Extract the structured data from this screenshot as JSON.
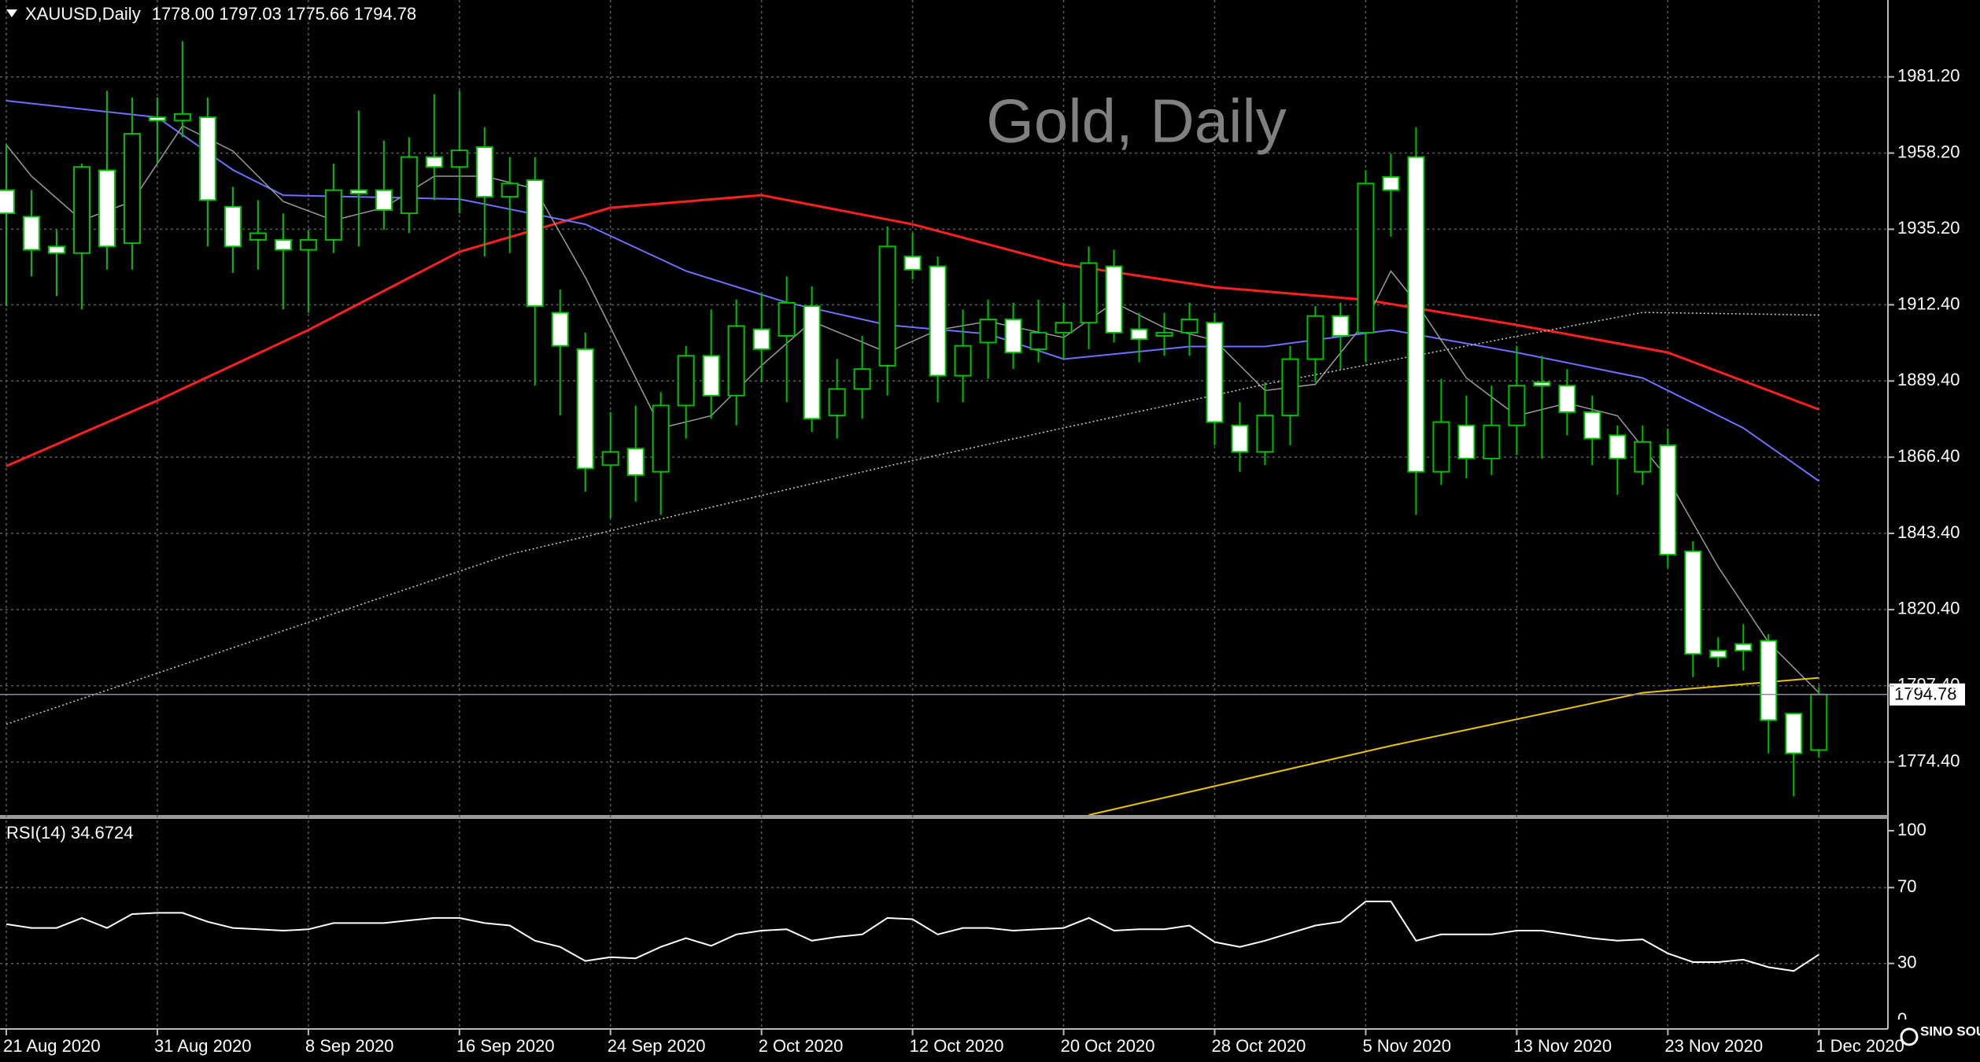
{
  "chart_data": [
    {
      "type": "candlestick",
      "title": "Gold, Daily",
      "symbol": "XAUUSD,Daily",
      "ohlc_text": "1778.00 1797.03 1775.66 1794.78",
      "categories": [
        "21 Aug 2020",
        null,
        null,
        null,
        null,
        null,
        "31 Aug 2020",
        null,
        null,
        null,
        null,
        null,
        "8 Sep 2020",
        null,
        null,
        null,
        null,
        null,
        "16 Sep 2020",
        null,
        null,
        null,
        null,
        null,
        "24 Sep 2020",
        null,
        null,
        null,
        null,
        null,
        "2 Oct 2020",
        null,
        null,
        null,
        null,
        null,
        "12 Oct 2020",
        null,
        null,
        null,
        null,
        null,
        "20 Oct 2020",
        null,
        null,
        null,
        null,
        null,
        "28 Oct 2020",
        null,
        null,
        null,
        null,
        null,
        "5 Nov 2020",
        null,
        null,
        null,
        null,
        null,
        "13 Nov 2020",
        null,
        null,
        null,
        null,
        null,
        "23 Nov 2020",
        null,
        null,
        null,
        null,
        null,
        "1 Dec 2020"
      ],
      "open": [
        1947,
        1939,
        1930,
        1928,
        1953,
        1931,
        1969,
        1968,
        1969,
        1942,
        1932,
        1932,
        1929,
        1932,
        1947,
        1947,
        1940,
        1957,
        1954,
        1960,
        1945,
        1950,
        1910,
        1899,
        1864,
        1869,
        1862,
        1882,
        1897,
        1885,
        1905,
        1903,
        1912,
        1879,
        1887,
        1894,
        1927,
        1924,
        1891,
        1901,
        1908,
        1899,
        1904,
        1907,
        1924,
        1905,
        1903,
        1904,
        1907,
        1876,
        1868,
        1879,
        1896,
        1909,
        1904,
        1951,
        1957,
        1862,
        1876,
        1866,
        1876,
        1889,
        1888,
        1880,
        1873,
        1862,
        1870,
        1838,
        1808,
        1810,
        1811,
        1789,
        1778
      ],
      "high": [
        1961,
        1947,
        1935,
        1955,
        1977,
        1975,
        1975,
        1992,
        1975,
        1948,
        1944,
        1940,
        1935,
        1955,
        1971,
        1962,
        1963,
        1976,
        1977,
        1966,
        1957,
        1957,
        1917,
        1904,
        1880,
        1882,
        1886,
        1900,
        1911,
        1914,
        1916,
        1921,
        1918,
        1896,
        1903,
        1936,
        1934,
        1927,
        1911,
        1914,
        1913,
        1914,
        1913,
        1930,
        1929,
        1910,
        1910,
        1913,
        1910,
        1883,
        1889,
        1900,
        1912,
        1913,
        1953,
        1958,
        1966,
        1890,
        1885,
        1888,
        1900,
        1897,
        1893,
        1885,
        1876,
        1876,
        1875,
        1841,
        1812,
        1816,
        1813,
        1789,
        1797.03
      ],
      "low": [
        1912,
        1921,
        1915,
        1911,
        1923,
        1923,
        1955,
        1963,
        1930,
        1922,
        1923,
        1911,
        1910,
        1928,
        1930,
        1935,
        1934,
        1944,
        1940,
        1927,
        1928,
        1888,
        1879,
        1856,
        1848,
        1853,
        1849,
        1872,
        1878,
        1876,
        1889,
        1883,
        1874,
        1872,
        1878,
        1885,
        1920,
        1883,
        1883,
        1890,
        1893,
        1895,
        1896,
        1899,
        1901,
        1895,
        1897,
        1897,
        1870,
        1862,
        1864,
        1870,
        1889,
        1893,
        1895,
        1933,
        1849,
        1858,
        1860,
        1861,
        1867,
        1866,
        1873,
        1864,
        1855,
        1858,
        1833,
        1800,
        1803,
        1802,
        1777,
        1764,
        1775.66
      ],
      "close": [
        1940,
        1929,
        1928,
        1954,
        1930,
        1964,
        1968,
        1970,
        1944,
        1930,
        1934,
        1929,
        1932,
        1947,
        1946,
        1941,
        1957,
        1954,
        1959,
        1945,
        1949,
        1912,
        1900,
        1863,
        1868,
        1861,
        1882,
        1897,
        1885,
        1906,
        1899,
        1913,
        1878,
        1887,
        1893,
        1930,
        1923,
        1891,
        1900,
        1908,
        1898,
        1904,
        1907,
        1925,
        1904,
        1902,
        1904,
        1908,
        1877,
        1868,
        1879,
        1896,
        1909,
        1903,
        1949,
        1947,
        1862,
        1877,
        1866,
        1876,
        1888,
        1888,
        1880,
        1872,
        1866,
        1871,
        1837,
        1807,
        1806,
        1808,
        1787,
        1777,
        1794.78
      ],
      "bull_color": "#000000",
      "bear_color": "#ffffff",
      "wick_color": "#00c000",
      "ylim": [
        1758.4,
        2004.4
      ],
      "yticks": [
        {
          "value": 1981.2,
          "label": "1981.20"
        },
        {
          "value": 1958.2,
          "label": "1958.20"
        },
        {
          "value": 1935.2,
          "label": "1935.20"
        },
        {
          "value": 1912.4,
          "label": "1912.40"
        },
        {
          "value": 1889.4,
          "label": "1889.40"
        },
        {
          "value": 1866.4,
          "label": "1866.40"
        },
        {
          "value": 1843.4,
          "label": "1843.40"
        },
        {
          "value": 1820.4,
          "label": "1820.40"
        },
        {
          "value": 1797.4,
          "label": "1797.40"
        },
        {
          "value": 1774.4,
          "label": "1774.40"
        }
      ],
      "grid": true,
      "last_price": {
        "value": 1794.78,
        "label": "1794.78"
      },
      "lines": [
        {
          "color": "#ff2020",
          "style": "solid",
          "width": 3,
          "x": [
            0,
            6,
            12,
            18,
            24,
            30,
            36,
            42,
            48,
            54,
            60,
            66,
            72
          ],
          "values": [
            1863.7,
            1883.5,
            1904.8,
            1928.4,
            1941.7,
            1945.5,
            1936.7,
            1924.6,
            1917.7,
            1913.9,
            1906.3,
            1898.0,
            1880.8
          ]
        },
        {
          "color": "#7070ff",
          "style": "solid",
          "width": 2,
          "x": [
            0,
            6,
            9,
            11,
            18,
            23,
            27,
            31,
            35,
            39,
            42,
            47,
            50,
            55,
            60,
            65,
            69,
            72
          ],
          "values": [
            1974.0,
            1969.0,
            1953.1,
            1945.5,
            1944.3,
            1936.7,
            1922.6,
            1913.1,
            1906.3,
            1903.6,
            1896.0,
            1899.8,
            1899.8,
            1904.8,
            1898.0,
            1890.3,
            1875.2,
            1859.2
          ]
        },
        {
          "color": "#9a9a9a",
          "style": "solid",
          "width": 1.5,
          "x": [
            0,
            1,
            3,
            5,
            7,
            9,
            11,
            13,
            15,
            17,
            19,
            21,
            23,
            25,
            26,
            28,
            30,
            32,
            35,
            37,
            39,
            42,
            44,
            46,
            48,
            50,
            52,
            54,
            55,
            56,
            58,
            60,
            62,
            64,
            66,
            68,
            70,
            72
          ],
          "values": [
            1960.7,
            1951.2,
            1937.9,
            1943.6,
            1966.4,
            1958.8,
            1943.6,
            1937.9,
            1941.7,
            1951.2,
            1951.2,
            1947.4,
            1920.7,
            1890.3,
            1875.2,
            1878.9,
            1894.1,
            1907.4,
            1898.0,
            1904.8,
            1907.4,
            1902.5,
            1913.1,
            1905.5,
            1901.7,
            1886.5,
            1888.4,
            1907.4,
            1922.6,
            1913.1,
            1890.3,
            1878.9,
            1882.7,
            1878.9,
            1859.9,
            1833.3,
            1810.5,
            1795.3
          ]
        },
        {
          "color": "#cfcfcf",
          "style": "dotted",
          "width": 1.5,
          "x": [
            0,
            20,
            35,
            50,
            65,
            72
          ],
          "values": [
            1785.8,
            1837.1,
            1863.7,
            1888.4,
            1910.1,
            1909.3
          ]
        },
        {
          "color": "#e8c400",
          "style": "solid",
          "width": 2,
          "x": [
            43,
            55,
            65,
            72
          ],
          "values": [
            1758.4,
            1779.3,
            1795.3,
            1799.8
          ]
        }
      ]
    },
    {
      "type": "line",
      "label": "RSI(14) 34.6724",
      "color": "#ffffff",
      "values": [
        50.7,
        48.7,
        48.7,
        54,
        48.7,
        56,
        56.7,
        56.7,
        52,
        48.7,
        48,
        47.3,
        48,
        51.3,
        51.3,
        51.3,
        52.7,
        54,
        54,
        51.3,
        50,
        42,
        38.7,
        31.3,
        33.3,
        32.7,
        38.7,
        43.3,
        39.3,
        45.3,
        47.3,
        48,
        42,
        44,
        45.3,
        54,
        53.3,
        45.3,
        48.7,
        48.7,
        47.3,
        48,
        48.7,
        54,
        47.3,
        48,
        48,
        50,
        41.3,
        38.7,
        42,
        46,
        50,
        52,
        62.7,
        62.7,
        42,
        45.3,
        45.3,
        45.3,
        47.3,
        47.3,
        45.3,
        43.3,
        42,
        42.7,
        35.3,
        30.7,
        30.7,
        32,
        28,
        26,
        34.6724
      ],
      "ylim": [
        0,
        100
      ],
      "yticks": [
        100,
        70,
        30,
        0
      ],
      "grid": true
    }
  ],
  "watermark": "SINO SOUND"
}
